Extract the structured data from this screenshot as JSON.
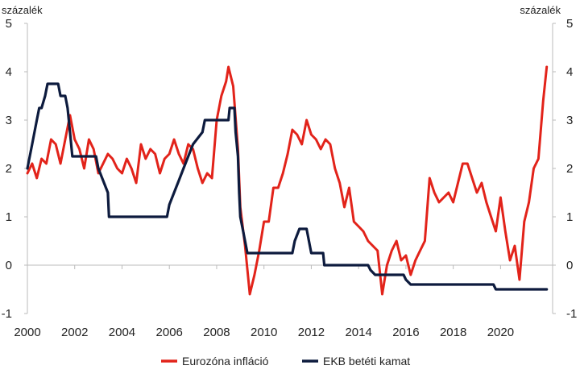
{
  "chart_data": {
    "type": "line",
    "y_unit_left": "százalék",
    "y_unit_right": "százalék",
    "xlim": [
      2000,
      2022.2
    ],
    "ylim": [
      -1,
      5
    ],
    "x_ticks": [
      "2000",
      "2002",
      "2004",
      "2006",
      "2008",
      "2010",
      "2012",
      "2014",
      "2016",
      "2018",
      "2020"
    ],
    "y_ticks": [
      "-1",
      "0",
      "1",
      "2",
      "3",
      "4",
      "5"
    ],
    "grid": false,
    "legend_position": "bottom-center",
    "series": [
      {
        "name": "Eurozóna infláció",
        "color": "#e2231a",
        "points": [
          [
            2000.0,
            1.9
          ],
          [
            2000.2,
            2.1
          ],
          [
            2000.4,
            1.8
          ],
          [
            2000.6,
            2.2
          ],
          [
            2000.8,
            2.1
          ],
          [
            2001.0,
            2.6
          ],
          [
            2001.2,
            2.5
          ],
          [
            2001.4,
            2.1
          ],
          [
            2001.6,
            2.6
          ],
          [
            2001.8,
            3.1
          ],
          [
            2002.0,
            2.6
          ],
          [
            2002.2,
            2.4
          ],
          [
            2002.4,
            2.0
          ],
          [
            2002.6,
            2.6
          ],
          [
            2002.8,
            2.4
          ],
          [
            2003.0,
            1.9
          ],
          [
            2003.2,
            2.1
          ],
          [
            2003.4,
            2.3
          ],
          [
            2003.6,
            2.2
          ],
          [
            2003.8,
            2.0
          ],
          [
            2004.0,
            1.9
          ],
          [
            2004.2,
            2.2
          ],
          [
            2004.4,
            2.0
          ],
          [
            2004.6,
            1.7
          ],
          [
            2004.8,
            2.5
          ],
          [
            2005.0,
            2.2
          ],
          [
            2005.2,
            2.4
          ],
          [
            2005.4,
            2.3
          ],
          [
            2005.6,
            1.9
          ],
          [
            2005.8,
            2.2
          ],
          [
            2006.0,
            2.3
          ],
          [
            2006.2,
            2.6
          ],
          [
            2006.4,
            2.3
          ],
          [
            2006.6,
            2.1
          ],
          [
            2006.8,
            2.5
          ],
          [
            2007.0,
            2.4
          ],
          [
            2007.2,
            2.0
          ],
          [
            2007.4,
            1.7
          ],
          [
            2007.6,
            1.9
          ],
          [
            2007.8,
            1.8
          ],
          [
            2008.0,
            3.0
          ],
          [
            2008.2,
            3.5
          ],
          [
            2008.4,
            3.8
          ],
          [
            2008.5,
            4.1
          ],
          [
            2008.7,
            3.7
          ],
          [
            2008.9,
            2.4
          ],
          [
            2009.0,
            1.2
          ],
          [
            2009.2,
            0.4
          ],
          [
            2009.4,
            -0.6
          ],
          [
            2009.6,
            -0.2
          ],
          [
            2009.8,
            0.3
          ],
          [
            2010.0,
            0.9
          ],
          [
            2010.2,
            0.9
          ],
          [
            2010.4,
            1.6
          ],
          [
            2010.6,
            1.6
          ],
          [
            2010.8,
            1.9
          ],
          [
            2011.0,
            2.3
          ],
          [
            2011.2,
            2.8
          ],
          [
            2011.4,
            2.7
          ],
          [
            2011.6,
            2.5
          ],
          [
            2011.8,
            3.0
          ],
          [
            2012.0,
            2.7
          ],
          [
            2012.2,
            2.6
          ],
          [
            2012.4,
            2.4
          ],
          [
            2012.6,
            2.6
          ],
          [
            2012.8,
            2.5
          ],
          [
            2013.0,
            2.0
          ],
          [
            2013.2,
            1.7
          ],
          [
            2013.4,
            1.2
          ],
          [
            2013.6,
            1.6
          ],
          [
            2013.8,
            0.9
          ],
          [
            2014.0,
            0.8
          ],
          [
            2014.2,
            0.7
          ],
          [
            2014.4,
            0.5
          ],
          [
            2014.6,
            0.4
          ],
          [
            2014.8,
            0.3
          ],
          [
            2015.0,
            -0.6
          ],
          [
            2015.2,
            0.0
          ],
          [
            2015.4,
            0.3
          ],
          [
            2015.6,
            0.5
          ],
          [
            2015.8,
            0.1
          ],
          [
            2016.0,
            0.2
          ],
          [
            2016.2,
            -0.2
          ],
          [
            2016.4,
            0.1
          ],
          [
            2016.6,
            0.3
          ],
          [
            2016.8,
            0.5
          ],
          [
            2017.0,
            1.8
          ],
          [
            2017.2,
            1.5
          ],
          [
            2017.4,
            1.3
          ],
          [
            2017.6,
            1.4
          ],
          [
            2017.8,
            1.5
          ],
          [
            2018.0,
            1.3
          ],
          [
            2018.2,
            1.7
          ],
          [
            2018.4,
            2.1
          ],
          [
            2018.6,
            2.1
          ],
          [
            2018.8,
            1.8
          ],
          [
            2019.0,
            1.5
          ],
          [
            2019.2,
            1.7
          ],
          [
            2019.4,
            1.3
          ],
          [
            2019.6,
            1.0
          ],
          [
            2019.8,
            0.7
          ],
          [
            2020.0,
            1.4
          ],
          [
            2020.2,
            0.7
          ],
          [
            2020.4,
            0.1
          ],
          [
            2020.6,
            0.4
          ],
          [
            2020.8,
            -0.3
          ],
          [
            2021.0,
            0.9
          ],
          [
            2021.2,
            1.3
          ],
          [
            2021.4,
            2.0
          ],
          [
            2021.6,
            2.2
          ],
          [
            2021.8,
            3.4
          ],
          [
            2021.95,
            4.1
          ]
        ]
      },
      {
        "name": "EKB betéti kamat",
        "color": "#0d1b3e",
        "points": [
          [
            2000.0,
            2.0
          ],
          [
            2000.2,
            2.5
          ],
          [
            2000.4,
            3.0
          ],
          [
            2000.5,
            3.25
          ],
          [
            2000.6,
            3.25
          ],
          [
            2000.75,
            3.5
          ],
          [
            2000.85,
            3.75
          ],
          [
            2001.3,
            3.75
          ],
          [
            2001.4,
            3.5
          ],
          [
            2001.6,
            3.5
          ],
          [
            2001.7,
            3.25
          ],
          [
            2001.8,
            2.75
          ],
          [
            2001.9,
            2.25
          ],
          [
            2002.9,
            2.25
          ],
          [
            2003.0,
            2.0
          ],
          [
            2003.2,
            1.75
          ],
          [
            2003.4,
            1.5
          ],
          [
            2003.45,
            1.0
          ],
          [
            2005.9,
            1.0
          ],
          [
            2006.0,
            1.25
          ],
          [
            2006.2,
            1.5
          ],
          [
            2006.4,
            1.75
          ],
          [
            2006.6,
            2.0
          ],
          [
            2006.8,
            2.25
          ],
          [
            2007.0,
            2.5
          ],
          [
            2007.4,
            2.75
          ],
          [
            2007.5,
            3.0
          ],
          [
            2008.5,
            3.0
          ],
          [
            2008.55,
            3.25
          ],
          [
            2008.75,
            3.25
          ],
          [
            2008.8,
            2.75
          ],
          [
            2008.9,
            2.25
          ],
          [
            2008.95,
            1.5
          ],
          [
            2009.0,
            1.0
          ],
          [
            2009.2,
            0.5
          ],
          [
            2009.3,
            0.25
          ],
          [
            2011.2,
            0.25
          ],
          [
            2011.3,
            0.5
          ],
          [
            2011.5,
            0.75
          ],
          [
            2011.8,
            0.75
          ],
          [
            2011.9,
            0.5
          ],
          [
            2012.0,
            0.25
          ],
          [
            2012.5,
            0.25
          ],
          [
            2012.55,
            0.0
          ],
          [
            2014.4,
            0.0
          ],
          [
            2014.5,
            -0.1
          ],
          [
            2014.7,
            -0.2
          ],
          [
            2015.9,
            -0.2
          ],
          [
            2016.0,
            -0.3
          ],
          [
            2016.2,
            -0.4
          ],
          [
            2019.7,
            -0.4
          ],
          [
            2019.8,
            -0.5
          ],
          [
            2021.95,
            -0.5
          ]
        ]
      }
    ]
  }
}
